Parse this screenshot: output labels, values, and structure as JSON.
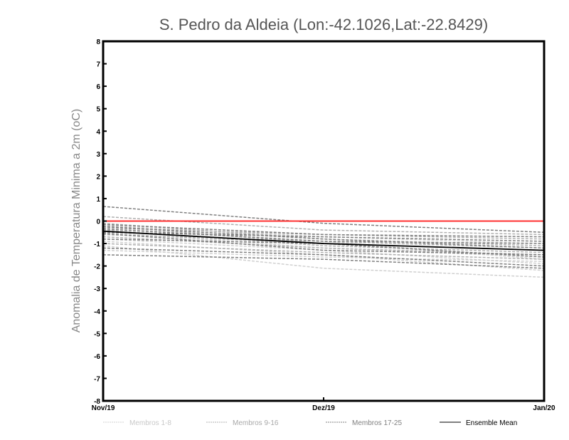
{
  "chart_data": {
    "type": "line",
    "title": "S. Pedro da Aldeia (Lon:-42.1026,Lat:-22.8429)",
    "xlabel": "",
    "ylabel": "Anomalia de Temperatura Minima a 2m (oC)",
    "categories": [
      "Nov/19",
      "Dez/19",
      "Jan/20"
    ],
    "ylim": [
      -8,
      8
    ],
    "yticks": [
      "-8",
      "-7",
      "-6",
      "-5",
      "-4",
      "-3",
      "-2",
      "-1",
      "0",
      "1",
      "2",
      "3",
      "4",
      "5",
      "6",
      "7",
      "8"
    ],
    "reference_line": {
      "value": 0,
      "color": "#ff3030"
    },
    "groups": [
      {
        "name": "Membros 1-8",
        "color": "#d0d0d0",
        "style": "dashed",
        "members": [
          [
            -0.3,
            -0.9,
            -1.7
          ],
          [
            -0.9,
            -1.5,
            -2.2
          ],
          [
            -1.1,
            -2.1,
            -2.5
          ],
          [
            -0.6,
            -1.0,
            -1.3
          ],
          [
            -0.2,
            -0.7,
            -1.0
          ],
          [
            -1.3,
            -1.6,
            -1.8
          ],
          [
            -0.5,
            -1.2,
            -1.6
          ],
          [
            -0.8,
            -1.3,
            -1.9
          ]
        ]
      },
      {
        "name": "Membros 9-16",
        "color": "#b0b0b0",
        "style": "dashed",
        "members": [
          [
            0.2,
            -0.4,
            -0.6
          ],
          [
            -0.1,
            -0.8,
            -1.1
          ],
          [
            -0.4,
            -1.1,
            -1.4
          ],
          [
            -0.7,
            -1.2,
            -1.5
          ],
          [
            -1.0,
            -1.4,
            -1.7
          ],
          [
            -0.3,
            -0.6,
            -0.8
          ],
          [
            -0.6,
            -0.9,
            -1.2
          ],
          [
            -0.2,
            -1.0,
            -1.3
          ]
        ]
      },
      {
        "name": "Membros 17-25",
        "color": "#808080",
        "style": "dashed",
        "members": [
          [
            0.65,
            -0.1,
            -0.5
          ],
          [
            -0.15,
            -0.6,
            -0.7
          ],
          [
            -0.35,
            -0.9,
            -1.0
          ],
          [
            -0.5,
            -0.7,
            -0.9
          ],
          [
            -1.5,
            -1.7,
            -2.1
          ],
          [
            -0.8,
            -1.0,
            -1.6
          ],
          [
            -0.25,
            -0.8,
            -1.2
          ],
          [
            -0.55,
            -1.3,
            -1.5
          ],
          [
            -1.2,
            -1.5,
            -2.0
          ]
        ]
      }
    ],
    "ensemble_mean": {
      "name": "Ensemble Mean",
      "color": "#000000",
      "values": [
        -0.45,
        -1.0,
        -1.3
      ]
    },
    "legend_position": "bottom",
    "grid": false
  }
}
